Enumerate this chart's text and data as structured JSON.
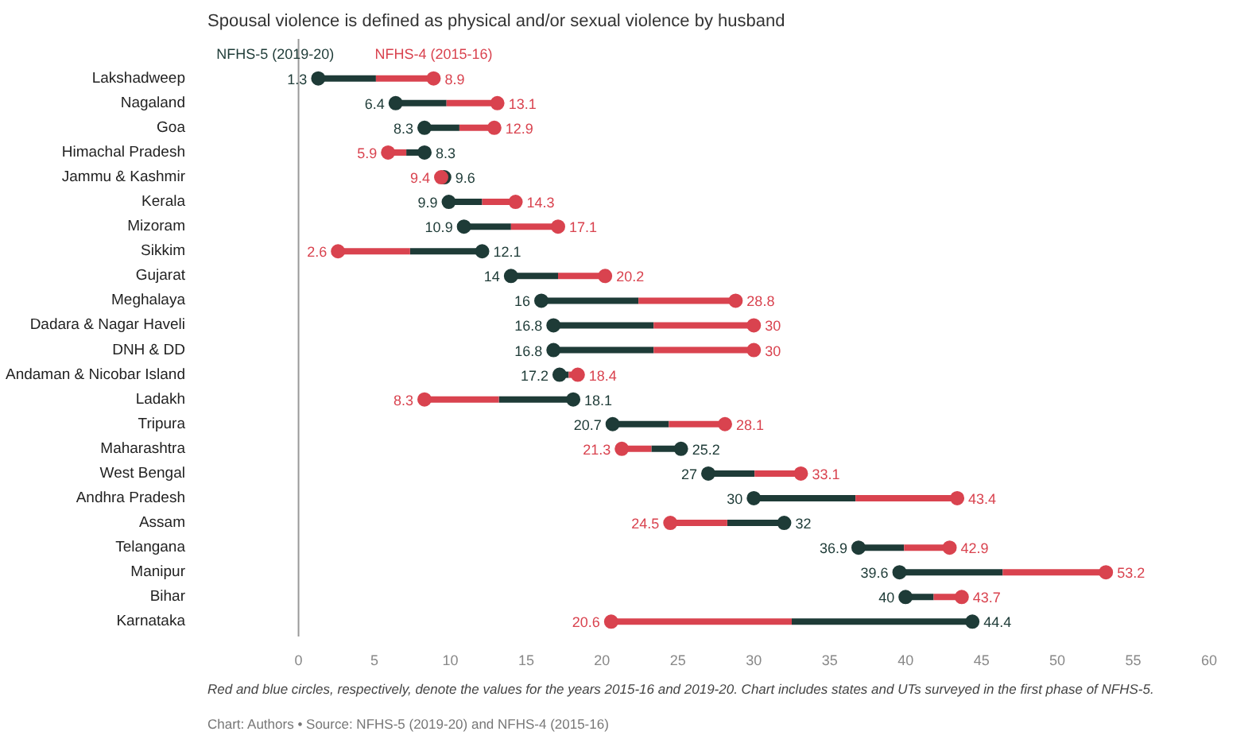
{
  "chart_data": {
    "type": "lollipop",
    "title": "Spousal violence is defined as physical and/or sexual violence by husband",
    "categories": [
      "Lakshadweep",
      "Nagaland",
      "Goa",
      "Himachal Pradesh",
      "Jammu & Kashmir",
      "Kerala",
      "Mizoram",
      "Sikkim",
      "Gujarat",
      "Meghalaya",
      "Dadara & Nagar Haveli",
      "DNH & DD",
      "Andaman & Nicobar Island",
      "Ladakh",
      "Tripura",
      "Maharashtra",
      "West Bengal",
      "Andhra Pradesh",
      "Assam",
      "Telangana",
      "Manipur",
      "Bihar",
      "Karnataka"
    ],
    "series": [
      {
        "name": "NFHS-5 (2019-20)",
        "color": "#1e3b37",
        "values": [
          1.3,
          6.4,
          8.3,
          8.3,
          9.6,
          9.9,
          10.9,
          12.1,
          14,
          16,
          16.8,
          16.8,
          17.2,
          18.1,
          20.7,
          25.2,
          27,
          30,
          32,
          36.9,
          39.6,
          40,
          44.4
        ]
      },
      {
        "name": "NFHS-4 (2015-16)",
        "color": "#d9434f",
        "values": [
          8.9,
          13.1,
          12.9,
          5.9,
          9.4,
          14.3,
          17.1,
          2.6,
          20.2,
          28.8,
          30,
          30,
          18.4,
          8.3,
          28.1,
          21.3,
          33.1,
          43.4,
          24.5,
          42.9,
          53.2,
          43.7,
          20.6
        ]
      }
    ],
    "xlim": [
      0,
      60
    ],
    "xticks": [
      0,
      5,
      10,
      15,
      20,
      25,
      30,
      35,
      40,
      45,
      50,
      55,
      60
    ],
    "orientation": "horizontal",
    "data_labels": true,
    "grid": false,
    "annotations": [
      "Red and blue circles, respectively, denote the values for the years 2015-16 and 2019-20. Chart includes states and UTs surveyed in the first phase of NFHS-5.",
      "Chart: Authors • Source: NFHS-5 (2019-20) and NFHS-4 (2015-16)"
    ]
  }
}
